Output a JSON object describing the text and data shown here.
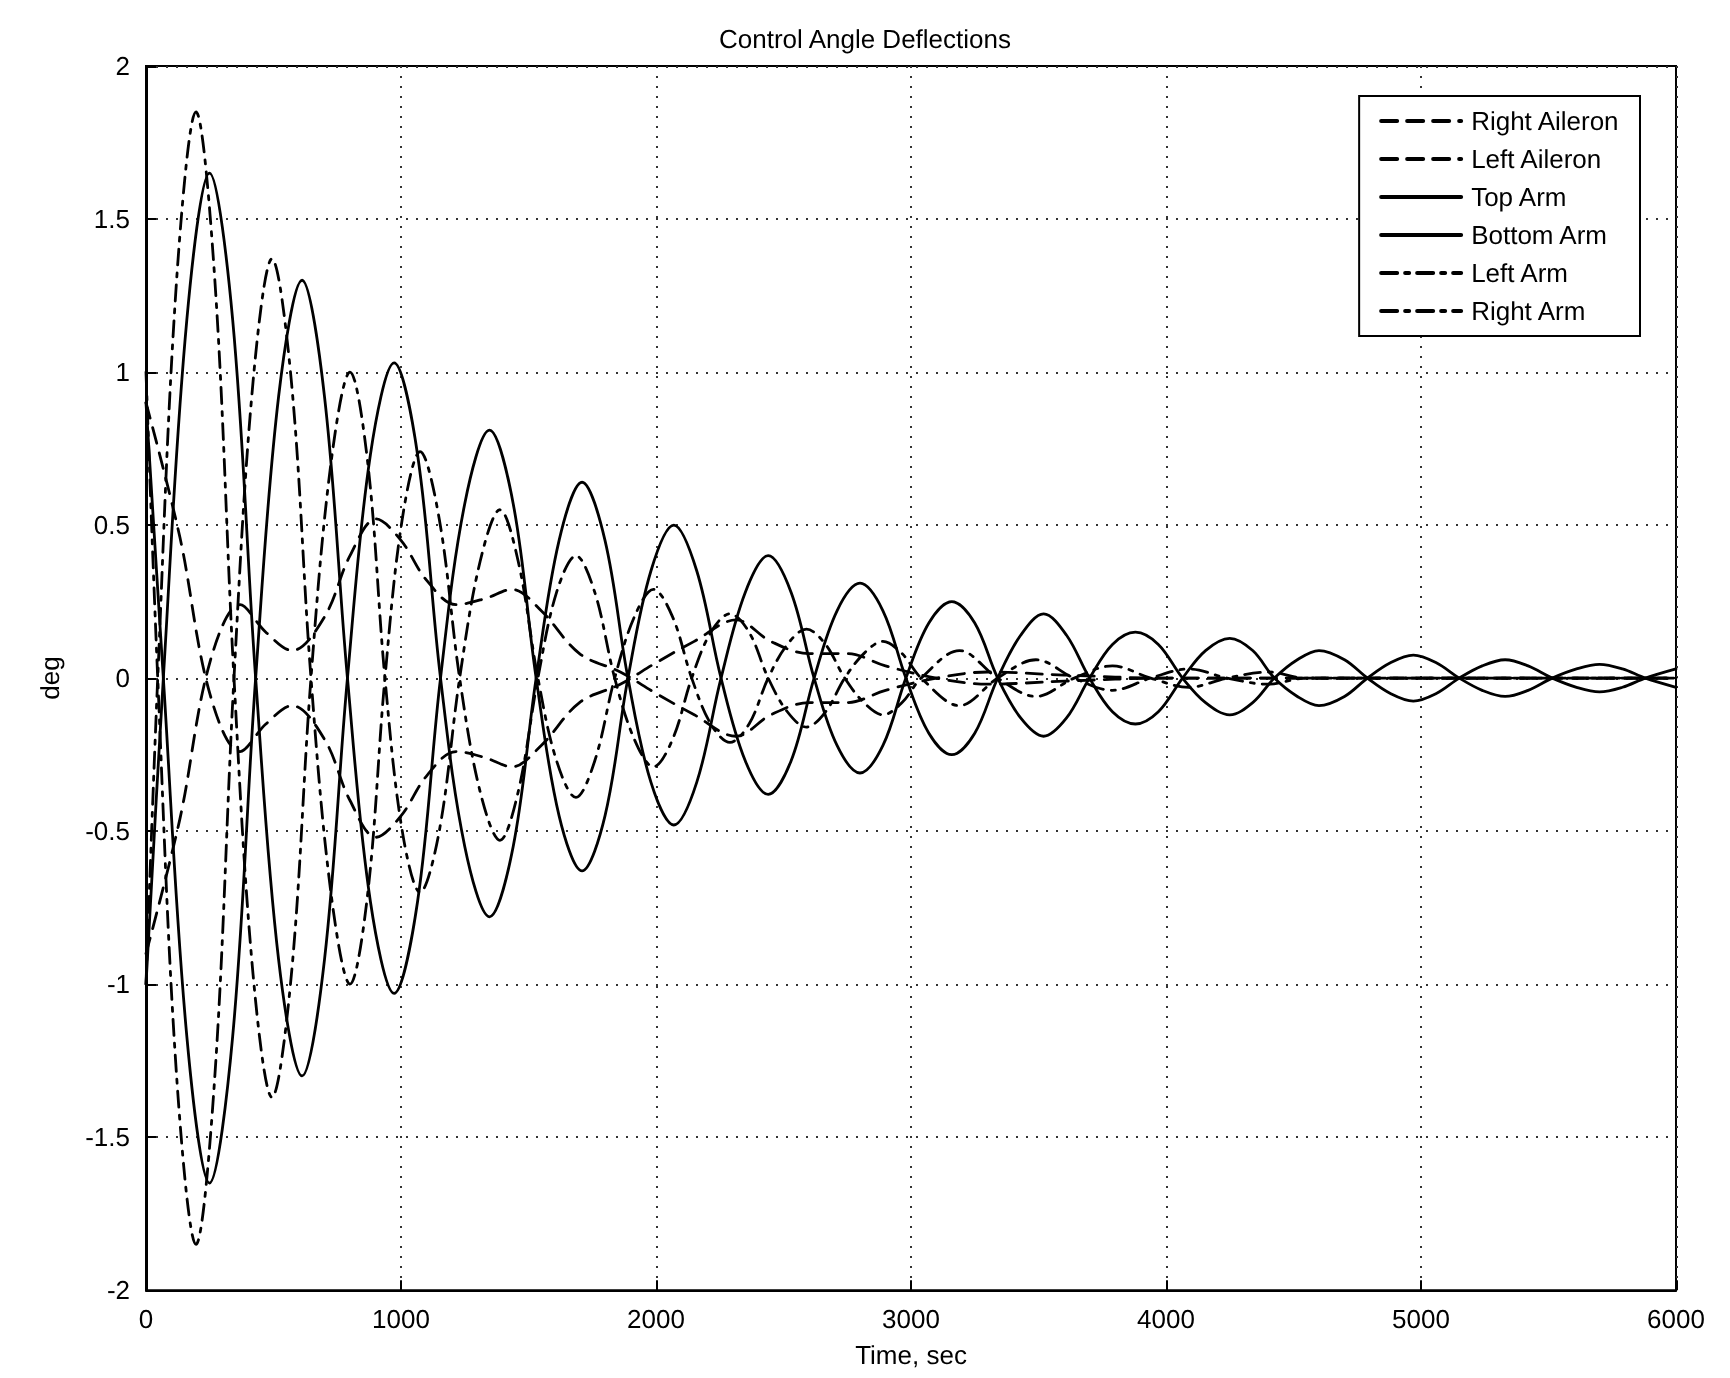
{
  "chart_data": {
    "type": "line",
    "title": "Control Angle Deflections",
    "xlabel": "Time, sec",
    "ylabel": "deg",
    "xlim": [
      0,
      6000
    ],
    "xticks": [
      0,
      1000,
      2000,
      3000,
      4000,
      5000,
      6000
    ],
    "ylim": [
      -2,
      2
    ],
    "yticks": [
      -2,
      -1.5,
      -1,
      -0.5,
      0,
      0.5,
      1,
      1.5,
      2
    ],
    "grid": true,
    "legend": "top right",
    "series": [
      {
        "name": "Right Aileron",
        "color": "#000000",
        "line_style": "dashed",
        "x": [
          0,
          133,
          250,
          369,
          470,
          573,
          700,
          800,
          902,
          1000,
          1100,
          1216,
          1330,
          1435,
          1550,
          1700,
          1860,
          2000,
          2150,
          2314,
          2450,
          2600,
          2750,
          2900,
          3100,
          3300,
          3600,
          4000,
          5000,
          6000
        ],
        "values": [
          0.9,
          0.46,
          -0.05,
          -0.24,
          -0.15,
          -0.09,
          -0.2,
          -0.4,
          -0.52,
          -0.45,
          -0.32,
          -0.24,
          -0.26,
          -0.29,
          -0.22,
          -0.08,
          -0.02,
          0.05,
          0.12,
          0.19,
          0.12,
          0.08,
          0.08,
          0.04,
          0,
          -0.02,
          -0.01,
          0,
          0,
          0
        ]
      },
      {
        "name": "Left Aileron",
        "color": "#000000",
        "line_style": "dashed",
        "x": [
          0,
          133,
          250,
          369,
          470,
          573,
          700,
          800,
          902,
          1000,
          1100,
          1216,
          1330,
          1435,
          1550,
          1700,
          1860,
          2000,
          2150,
          2314,
          2450,
          2600,
          2750,
          2900,
          3100,
          3300,
          3600,
          4000,
          5000,
          6000
        ],
        "values": [
          -0.9,
          -0.46,
          0.05,
          0.24,
          0.15,
          0.09,
          0.2,
          0.4,
          0.52,
          0.45,
          0.32,
          0.24,
          0.26,
          0.29,
          0.22,
          0.08,
          0.02,
          -0.05,
          -0.12,
          -0.19,
          -0.12,
          -0.08,
          -0.08,
          -0.04,
          0,
          0.02,
          0.01,
          0,
          0,
          0
        ]
      },
      {
        "name": "Top Arm",
        "color": "#000000",
        "line_style": "solid",
        "x": [
          0,
          68,
          160,
          249,
          340,
          430,
          520,
          612,
          700,
          790,
          880,
          973,
          1065,
          1155,
          1250,
          1347,
          1440,
          1530,
          1620,
          1710,
          1800,
          1890,
          1980,
          2070,
          2160,
          2255,
          2350,
          2440,
          2530,
          2620,
          2710,
          2800,
          2890,
          2980,
          3070,
          3160,
          3250,
          3340,
          3430,
          3520,
          3610,
          3700,
          3790,
          3880,
          3970,
          4065,
          4155,
          4250,
          4340,
          4425,
          4515,
          4600,
          4700,
          4790,
          4880,
          4970,
          5060,
          5150,
          5240,
          5330,
          5420,
          5515,
          5610,
          5700,
          5790,
          5880,
          6000
        ],
        "values": [
          -1.0,
          0,
          1.17,
          1.65,
          1.17,
          0,
          -0.92,
          -1.3,
          -0.92,
          0,
          0.73,
          1.03,
          0.73,
          0,
          -0.55,
          -0.78,
          -0.55,
          0,
          0.45,
          0.64,
          0.45,
          0,
          -0.34,
          -0.48,
          -0.34,
          0,
          0.28,
          0.4,
          0.28,
          0,
          -0.22,
          -0.31,
          -0.22,
          0,
          0.18,
          0.25,
          0.18,
          0,
          -0.13,
          -0.19,
          -0.13,
          0,
          0.11,
          0.15,
          0.11,
          0,
          -0.08,
          -0.12,
          -0.08,
          0,
          0.06,
          0.09,
          0.06,
          0,
          -0.05,
          -0.075,
          -0.05,
          0,
          0.04,
          0.06,
          0.04,
          0,
          -0.03,
          -0.045,
          -0.03,
          0,
          0.03
        ]
      },
      {
        "name": "Bottom Arm",
        "color": "#000000",
        "line_style": "solid",
        "x": [
          0,
          68,
          160,
          249,
          340,
          430,
          520,
          612,
          700,
          790,
          880,
          973,
          1065,
          1155,
          1250,
          1347,
          1440,
          1530,
          1620,
          1710,
          1800,
          1890,
          1980,
          2070,
          2160,
          2255,
          2350,
          2440,
          2530,
          2620,
          2710,
          2800,
          2890,
          2980,
          3070,
          3160,
          3250,
          3340,
          3430,
          3520,
          3610,
          3700,
          3790,
          3880,
          3970,
          4065,
          4155,
          4250,
          4340,
          4425,
          4515,
          4600,
          4700,
          4790,
          4880,
          4970,
          5060,
          5150,
          5240,
          5330,
          5420,
          5515,
          5610,
          5700,
          5790,
          5880,
          6000
        ],
        "values": [
          0.9,
          0,
          -1.17,
          -1.65,
          -1.17,
          0,
          0.92,
          1.3,
          0.92,
          0,
          -0.73,
          -1.03,
          -0.73,
          0,
          0.57,
          0.81,
          0.57,
          0,
          -0.45,
          -0.63,
          -0.45,
          0,
          0.35,
          0.5,
          0.35,
          0,
          -0.27,
          -0.38,
          -0.27,
          0,
          0.22,
          0.31,
          0.22,
          0,
          -0.18,
          -0.25,
          -0.18,
          0,
          0.14,
          0.21,
          0.14,
          0,
          -0.11,
          -0.15,
          -0.11,
          0,
          0.09,
          0.13,
          0.09,
          0,
          -0.06,
          -0.09,
          -0.06,
          0,
          0.05,
          0.075,
          0.05,
          0,
          -0.04,
          -0.06,
          -0.04,
          0,
          0.03,
          0.045,
          0.03,
          0,
          -0.03
        ]
      },
      {
        "name": "Left Arm",
        "color": "#000000",
        "line_style": "dashdot",
        "x": [
          0,
          46,
          120,
          196,
          270,
          345,
          420,
          494,
          570,
          647,
          725,
          800,
          870,
          937,
          1005,
          1075,
          1150,
          1230,
          1310,
          1388,
          1460,
          1537,
          1610,
          1686,
          1760,
          1838,
          1915,
          1990,
          2065,
          2140,
          2215,
          2290,
          2365,
          2440,
          2515,
          2590,
          2665,
          2740,
          2815,
          2890,
          2965,
          3040,
          3190,
          3340,
          3490,
          3640,
          3790,
          3940,
          4090,
          4240,
          4400,
          4550,
          6000
        ],
        "values": [
          1.0,
          0,
          -1.3,
          -1.85,
          -1.3,
          0,
          0.97,
          1.37,
          0.97,
          0,
          -0.7,
          -1.0,
          -0.7,
          0,
          0.52,
          0.74,
          0.52,
          0,
          -0.37,
          -0.53,
          -0.37,
          0,
          0.28,
          0.4,
          0.28,
          0,
          -0.2,
          -0.29,
          -0.2,
          0,
          0.15,
          0.21,
          0.15,
          0,
          -0.11,
          -0.16,
          -0.11,
          0,
          0.08,
          0.12,
          0.08,
          0,
          -0.09,
          0,
          0.06,
          0,
          -0.04,
          0,
          0.03,
          0,
          -0.02,
          0,
          0
        ]
      },
      {
        "name": "Right Arm",
        "color": "#000000",
        "line_style": "dashdot",
        "x": [
          0,
          46,
          120,
          196,
          270,
          345,
          420,
          494,
          570,
          647,
          725,
          800,
          870,
          937,
          1005,
          1075,
          1150,
          1230,
          1310,
          1388,
          1460,
          1537,
          1610,
          1686,
          1760,
          1838,
          1915,
          1990,
          2065,
          2140,
          2215,
          2290,
          2365,
          2440,
          2515,
          2590,
          2665,
          2740,
          2815,
          2890,
          2965,
          3040,
          3190,
          3340,
          3490,
          3640,
          3790,
          3940,
          4090,
          4240,
          4400,
          4550,
          6000
        ],
        "values": [
          -1.0,
          0,
          1.3,
          1.85,
          1.3,
          0,
          -0.97,
          -1.37,
          -0.97,
          0,
          0.7,
          1.0,
          0.7,
          0,
          -0.5,
          -0.7,
          -0.5,
          0,
          0.38,
          0.55,
          0.38,
          0,
          -0.27,
          -0.39,
          -0.27,
          0,
          0.2,
          0.29,
          0.2,
          0,
          -0.15,
          -0.21,
          -0.15,
          0,
          0.11,
          0.16,
          0.11,
          0,
          -0.08,
          -0.12,
          -0.08,
          0,
          0.09,
          0,
          -0.06,
          0,
          0.04,
          0,
          -0.03,
          0,
          0.02,
          0,
          0
        ]
      }
    ]
  }
}
